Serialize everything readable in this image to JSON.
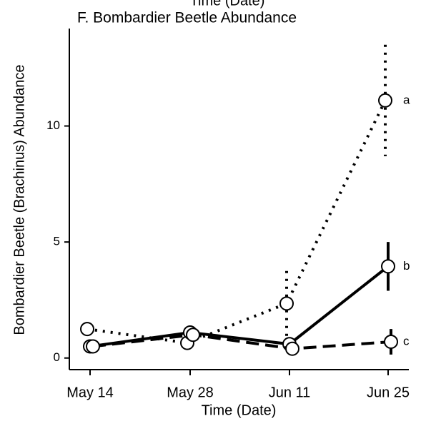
{
  "header_fragment": "Time (Date)",
  "chart_data": {
    "type": "line",
    "title": "F. Bombardier Beetle Abundance",
    "x_label": "Time (Date)",
    "y_label": "Bombardier Beetle (Brachinus) Abundance",
    "categories": [
      "May 14",
      "May 28",
      "Jun 11",
      "Jun 25"
    ],
    "ylim": [
      -0.5,
      14.2
    ],
    "yticks": [
      0,
      5,
      10
    ],
    "color": "#000000",
    "series": [
      {
        "label": "a",
        "dash": "dotted",
        "values": [
          1.25,
          0.65,
          2.35,
          11.1
        ],
        "errors": [
          0.3,
          0.3,
          1.4,
          2.4
        ]
      },
      {
        "label": "b",
        "dash": "solid",
        "values": [
          0.5,
          1.1,
          0.6,
          3.95
        ],
        "errors": [
          0.25,
          0.3,
          0.3,
          1.05
        ]
      },
      {
        "label": "c",
        "dash": "dashed",
        "values": [
          0.5,
          1.0,
          0.4,
          0.7
        ],
        "errors": [
          0.2,
          0.3,
          0.25,
          0.55
        ]
      }
    ]
  }
}
